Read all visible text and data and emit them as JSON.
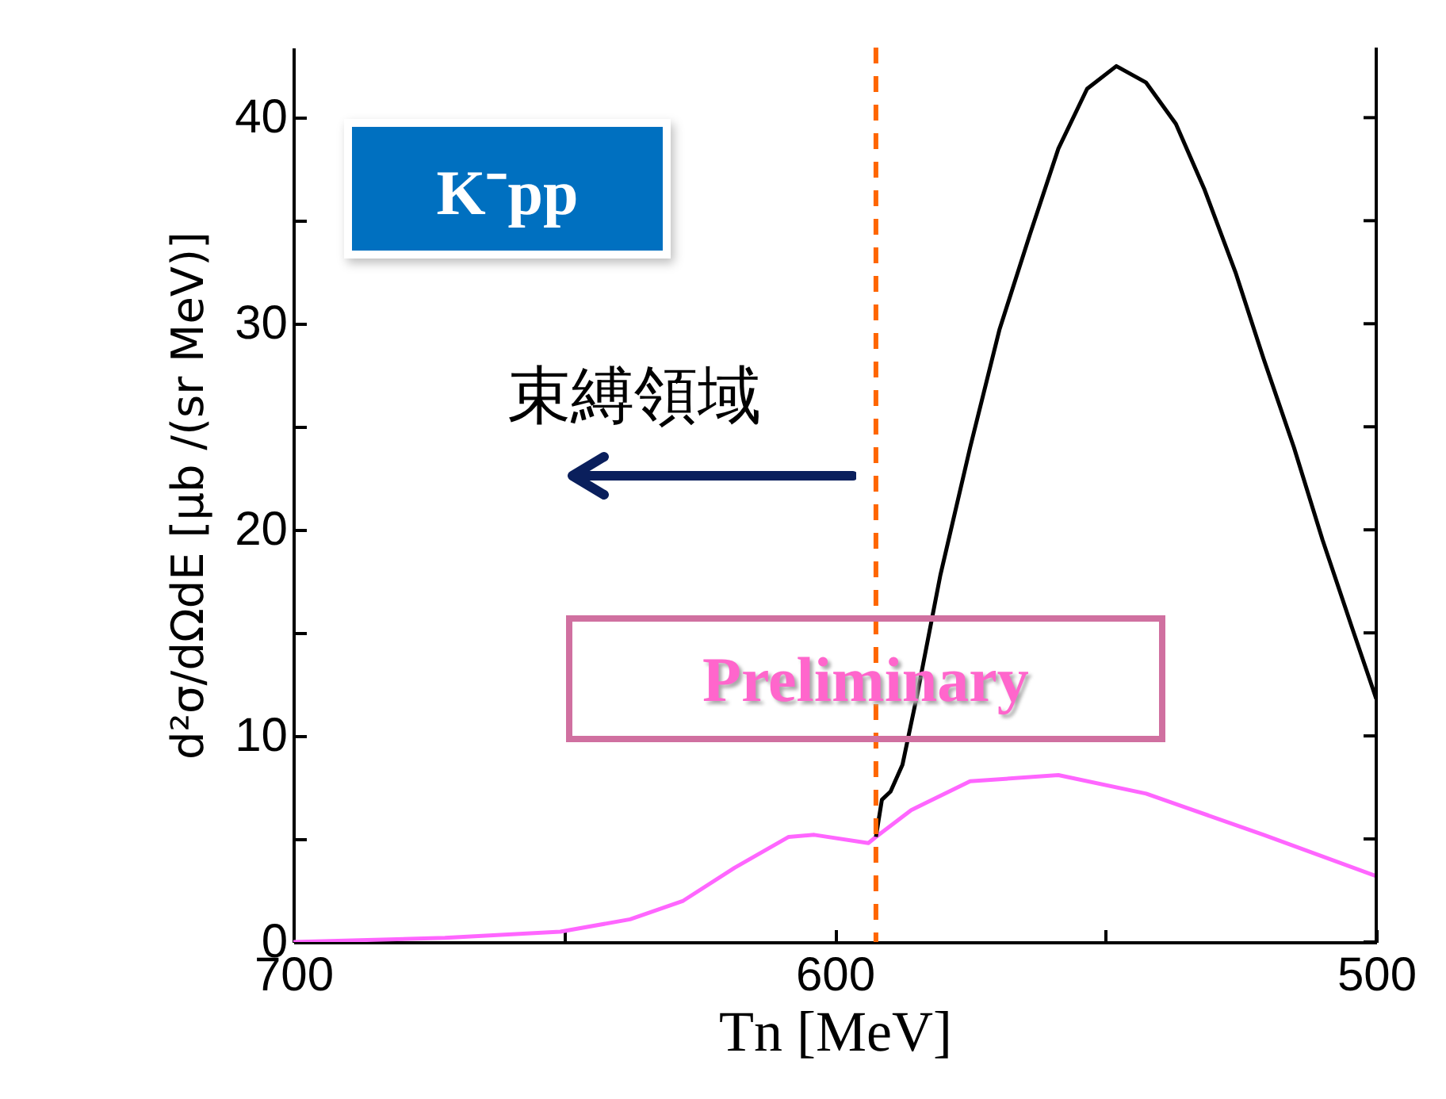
{
  "chart_data": {
    "type": "line",
    "xlabel": "Tn [MeV]",
    "ylabel": "d²σ/dΩdE [μb /(sr MeV)]",
    "xlim": [
      700,
      500
    ],
    "xticks": [
      700,
      {
        "value": 650,
        "label": null
      },
      600,
      {
        "value": 550,
        "label": null
      },
      500
    ],
    "ylim": [
      0,
      43.4
    ],
    "yticks": [
      0,
      {
        "value": 5,
        "label": null
      },
      10,
      {
        "value": 15,
        "label": null
      },
      20,
      {
        "value": 25,
        "label": null
      },
      30,
      {
        "value": 35,
        "label": null
      },
      40
    ],
    "series": [
      {
        "color": "#ff66ff",
        "x": [
          700,
          672,
          650.7,
          637.8,
          628,
          618.5,
          608.5,
          603.8,
          593.8,
          592.4,
          585.9,
          575,
          558.7,
          542.5,
          520.8,
          500
        ],
        "values": [
          0,
          0.2,
          0.5,
          1.1,
          2.0,
          3.6,
          5.1,
          5.2,
          4.8,
          5.1,
          6.4,
          7.8,
          8.1,
          7.2,
          5.2,
          3.2
        ]
      },
      {
        "color": "#000000",
        "x": [
          592.4,
          591.3,
          589.7,
          587.5,
          584.7,
          580.5,
          575,
          569.6,
          564,
          558.7,
          553.4,
          548,
          542.5,
          537,
          531.7,
          526,
          520.8,
          515.2,
          509.9,
          504.4,
          500
        ],
        "values": [
          5.1,
          6.9,
          7.3,
          8.6,
          12.1,
          17.8,
          24,
          29.7,
          34.3,
          38.5,
          41.4,
          42.5,
          41.7,
          39.7,
          36.5,
          32.5,
          28.3,
          24,
          19.5,
          15.2,
          11.8
        ]
      }
    ],
    "ref_lines": [
      {
        "axis": "x",
        "value": 592.4,
        "color": "#ff6600",
        "line_style": "dashed"
      }
    ],
    "annotations": [
      "K⁻pp",
      "束縛領域",
      "Preliminary"
    ]
  }
}
